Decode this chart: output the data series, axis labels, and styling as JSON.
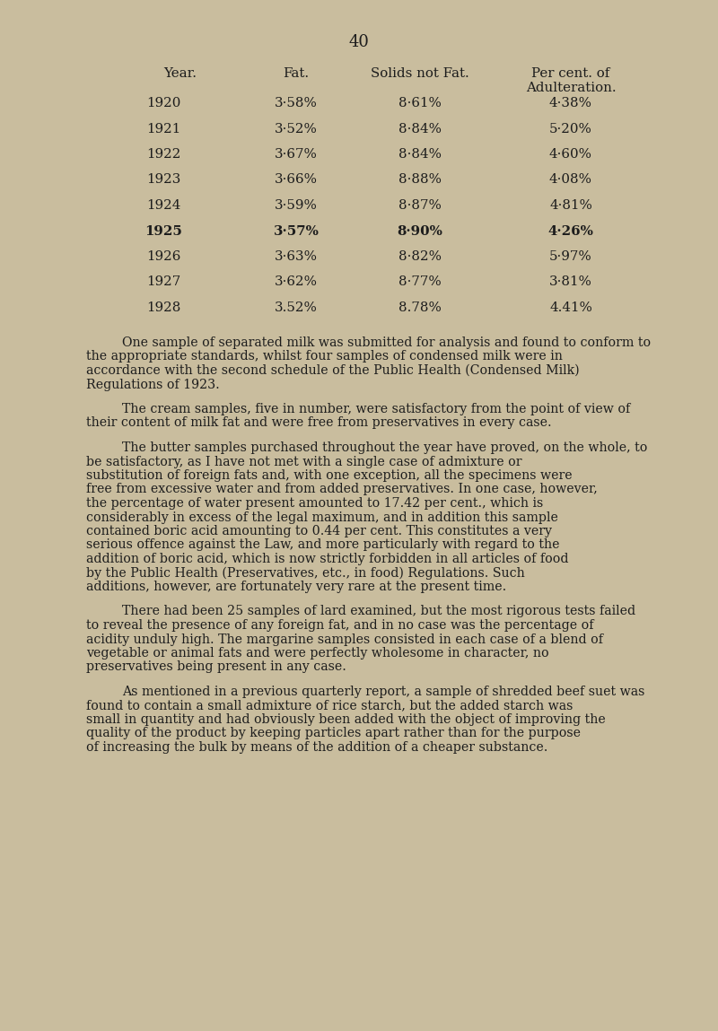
{
  "background_color": "#c9bd9e",
  "page_number": "40",
  "page_number_fontsize": 13,
  "table_data": [
    [
      "1920",
      "3·58%",
      "8·61%",
      "4·38%",
      false
    ],
    [
      "1921",
      "3·52%",
      "8·84%",
      "5·20%",
      false
    ],
    [
      "1922",
      "3·67%",
      "8·84%",
      "4·60%",
      false
    ],
    [
      "1923",
      "3·66%",
      "8·88%",
      "4·08%",
      false
    ],
    [
      "1924",
      "3·59%",
      "8·87%",
      "4·81%",
      false
    ],
    [
      "1925",
      "3·57%",
      "8·90%",
      "4·26%",
      true
    ],
    [
      "1926",
      "3·63%",
      "8·82%",
      "5·97%",
      false
    ],
    [
      "1927",
      "3·62%",
      "8·77%",
      "3·81%",
      false
    ],
    [
      "1928",
      "3.52%",
      "8.78%",
      "4.41%",
      false
    ]
  ],
  "text_color": "#1c1c1c",
  "body_fontsize": 10.2,
  "header_fontsize": 10.8,
  "table_fontsize": 10.8,
  "paragraphs": [
    {
      "indent": true,
      "text": "One sample of separated milk was submitted for analysis and found to conform to the appropriate standards, whilst four samples of condensed milk were in accordance with the second schedule of the Public Health (Condensed Milk) Regulations of 1923."
    },
    {
      "indent": true,
      "text": "The cream samples, five in number, were satisfactory from the point of view of  their content  of milk fat and were free from preservatives in every case."
    },
    {
      "indent": true,
      "text": "The butter samples purchased throughout the year have proved, on the whole, to be satisfactory, as I have not met with a single case of admixture or substitution of foreign fats and, with one exception, all the specimens were free from excessive water and from added preservatives.  In one case, however, the percentage of water present amounted to 17.42 per cent., which is considerably in excess of the legal maximum, and in addition this sample contained boric acid amounting to 0.44 per cent.  This constitutes a very serious offence against the Law, and more particularly with regard to  the addition of boric acid, which is now strictly forbidden in all articles of food by the Public Health (Preservatives, etc., in food) Regulations.  Such additions, however, are fortunately very rare at the present time."
    },
    {
      "indent": true,
      "text": "There had been 25 samples of lard examined, but the most rigorous tests failed to reveal the presence of any foreign fat, and in no case was the percentage of acidity unduly high.  The margarine samples consisted in each case of a blend of vegetable or animal fats and were perfectly wholesome in character, no preservatives being present in any case."
    },
    {
      "indent": true,
      "text": "As mentioned in a previous quarterly report, a sample of shredded beef suet was found to contain a small admixture of rice starch, but the added starch was small in quantity and had obviously been added with the object of improving the quality of the product by keeping particles apart rather than for the purpose of increasing the bulk by means of the addition of a cheaper substance."
    }
  ]
}
